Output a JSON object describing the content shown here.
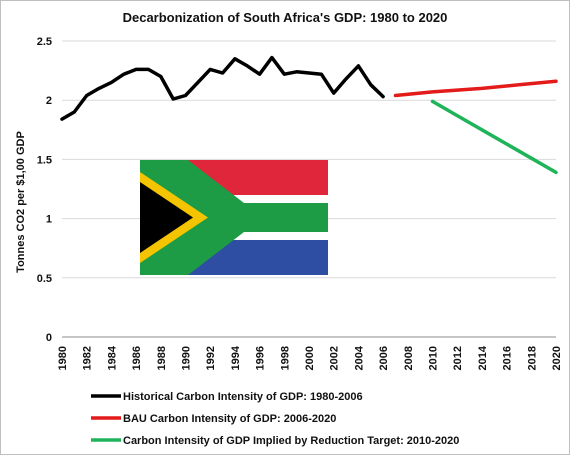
{
  "chart_data": {
    "type": "line",
    "title": "Decarbonization of South Africa's GDP: 1980 to 2020",
    "xlabel": "",
    "ylabel": "Tonnes CO2 per $1,00 GDP",
    "xlim": [
      1980,
      2020
    ],
    "ylim": [
      0,
      2.5
    ],
    "x_ticks": [
      1980,
      1982,
      1984,
      1986,
      1988,
      1990,
      1992,
      1994,
      1996,
      1998,
      2000,
      2002,
      2004,
      2006,
      2008,
      2010,
      2012,
      2014,
      2016,
      2018,
      2020
    ],
    "y_ticks": [
      0,
      0.5,
      1,
      1.5,
      2,
      2.5
    ],
    "y_tick_labels": [
      "0",
      "0.5",
      "1",
      "1.5",
      "2",
      "2.5"
    ],
    "grid": "horizontal",
    "legend_position": "bottom",
    "series": [
      {
        "name": "Historical Carbon Intensity of GDP: 1980-2006",
        "color": "#000000",
        "x": [
          1980,
          1981,
          1982,
          1983,
          1984,
          1985,
          1986,
          1987,
          1988,
          1989,
          1990,
          1991,
          1992,
          1993,
          1994,
          1995,
          1996,
          1997,
          1998,
          1999,
          2000,
          2001,
          2002,
          2003,
          2004,
          2005,
          2006
        ],
        "y": [
          1.84,
          1.9,
          2.04,
          2.1,
          2.15,
          2.22,
          2.26,
          2.26,
          2.2,
          2.01,
          2.04,
          2.15,
          2.26,
          2.23,
          2.35,
          2.29,
          2.22,
          2.36,
          2.22,
          2.24,
          2.23,
          2.22,
          2.06,
          2.18,
          2.29,
          2.13,
          2.03
        ]
      },
      {
        "name": "BAU Carbon Intensity of GDP: 2006-2020",
        "color": "#e31b1b",
        "x": [
          2007,
          2010,
          2014,
          2017,
          2020
        ],
        "y": [
          2.04,
          2.07,
          2.1,
          2.13,
          2.16
        ]
      },
      {
        "name": "Carbon Intensity of GDP Implied by Reduction Target: 2010-2020",
        "color": "#1fb45a",
        "x": [
          2010,
          2012,
          2014,
          2016,
          2018,
          2020
        ],
        "y": [
          1.99,
          1.87,
          1.75,
          1.63,
          1.51,
          1.39
        ]
      }
    ]
  },
  "flag": {
    "name": "South Africa flag",
    "colors": [
      "#e0263a",
      "#2d4ea3",
      "#1e9c45",
      "#ffffff",
      "#f5c400",
      "#000000"
    ]
  }
}
